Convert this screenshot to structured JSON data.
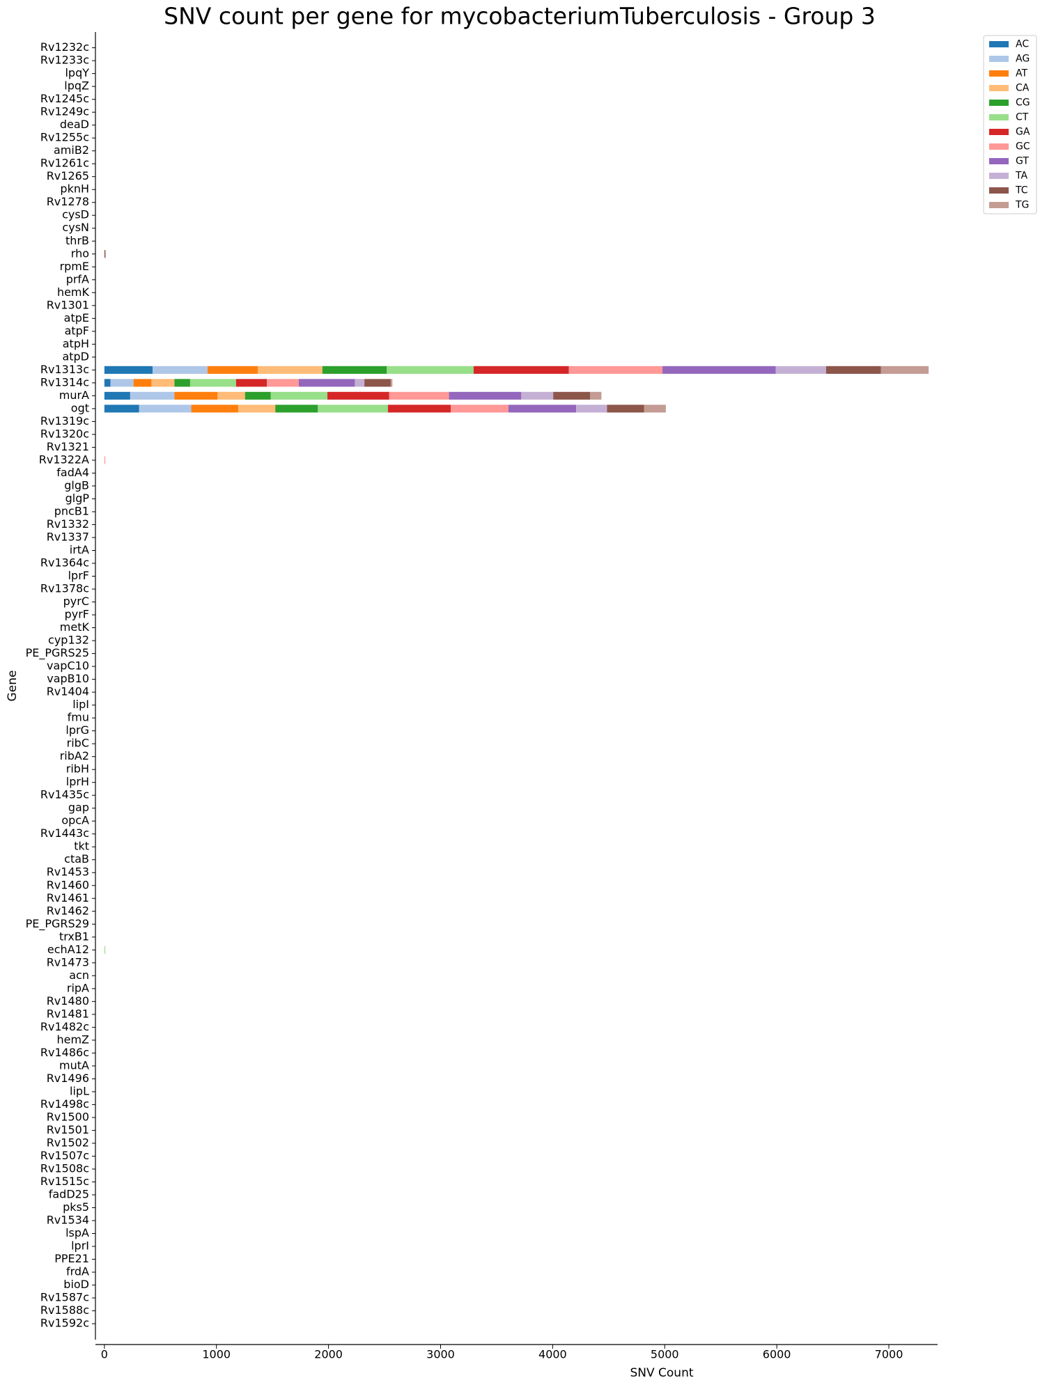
{
  "chart_data": {
    "type": "stacked_barh",
    "title": "SNV count per gene for mycobacteriumTuberculosis - Group 3",
    "xlabel": "SNV Count",
    "ylabel": "Gene",
    "categories": [
      "Rv1232c",
      "Rv1233c",
      "lpqY",
      "lpqZ",
      "Rv1245c",
      "Rv1249c",
      "deaD",
      "Rv1255c",
      "amiB2",
      "Rv1261c",
      "Rv1265",
      "pknH",
      "Rv1278",
      "cysD",
      "cysN",
      "thrB",
      "rho",
      "rpmE",
      "prfA",
      "hemK",
      "Rv1301",
      "atpE",
      "atpF",
      "atpH",
      "atpD",
      "Rv1313c",
      "Rv1314c",
      "murA",
      "ogt",
      "Rv1319c",
      "Rv1320c",
      "Rv1321",
      "Rv1322A",
      "fadA4",
      "glgB",
      "glgP",
      "pncB1",
      "Rv1332",
      "Rv1337",
      "irtA",
      "Rv1364c",
      "lprF",
      "Rv1378c",
      "pyrC",
      "pyrF",
      "metK",
      "cyp132",
      "PE_PGRS25",
      "vapC10",
      "vapB10",
      "Rv1404",
      "lipI",
      "fmu",
      "lprG",
      "ribC",
      "ribA2",
      "ribH",
      "lprH",
      "Rv1435c",
      "gap",
      "opcA",
      "Rv1443c",
      "tkt",
      "ctaB",
      "Rv1453",
      "Rv1460",
      "Rv1461",
      "Rv1462",
      "PE_PGRS29",
      "trxB1",
      "echA12",
      "Rv1473",
      "acn",
      "ripA",
      "Rv1480",
      "Rv1481",
      "Rv1482c",
      "hemZ",
      "Rv1486c",
      "mutA",
      "Rv1496",
      "lipL",
      "Rv1498c",
      "Rv1500",
      "Rv1501",
      "Rv1502",
      "Rv1507c",
      "Rv1508c",
      "Rv1515c",
      "fadD25",
      "pks5",
      "Rv1534",
      "lspA",
      "lprI",
      "PPE21",
      "frdA",
      "bioD",
      "Rv1587c",
      "Rv1588c",
      "Rv1592c"
    ],
    "series": [
      {
        "name": "AC",
        "color": "#1f77b4",
        "values": [
          0,
          0,
          0,
          0,
          0,
          0,
          0,
          0,
          0,
          0,
          0,
          0,
          0,
          0,
          0,
          0,
          0,
          0,
          0,
          0,
          0,
          0,
          0,
          0,
          0,
          430,
          55,
          230,
          310,
          0,
          0,
          0,
          0,
          0,
          0,
          0,
          0,
          0,
          0,
          0,
          0,
          0,
          0,
          0,
          0,
          0,
          0,
          0,
          0,
          0,
          0,
          0,
          0,
          0,
          0,
          0,
          0,
          0,
          0,
          0,
          0,
          0,
          0,
          0,
          0,
          0,
          0,
          0,
          0,
          0,
          0,
          0,
          0,
          0,
          0,
          0,
          0,
          0,
          0,
          0,
          0,
          0,
          0,
          0,
          0,
          0,
          0,
          0,
          0,
          0,
          0,
          0,
          0,
          0,
          0,
          0,
          0,
          0,
          0,
          0
        ]
      },
      {
        "name": "AG",
        "color": "#aec7e8",
        "values": [
          0,
          0,
          0,
          0,
          0,
          0,
          0,
          0,
          0,
          0,
          0,
          0,
          0,
          0,
          0,
          0,
          0,
          0,
          0,
          0,
          0,
          0,
          0,
          0,
          0,
          490,
          205,
          395,
          465,
          0,
          0,
          0,
          0,
          0,
          0,
          0,
          0,
          0,
          0,
          0,
          0,
          0,
          0,
          0,
          0,
          0,
          0,
          0,
          0,
          0,
          0,
          0,
          0,
          0,
          0,
          0,
          0,
          0,
          0,
          0,
          0,
          0,
          0,
          0,
          0,
          0,
          0,
          0,
          0,
          0,
          0,
          0,
          0,
          0,
          0,
          0,
          0,
          0,
          0,
          0,
          0,
          0,
          0,
          0,
          0,
          0,
          0,
          0,
          0,
          0,
          0,
          0,
          0,
          0,
          0,
          0,
          0,
          0,
          0,
          0
        ]
      },
      {
        "name": "AT",
        "color": "#ff7f0e",
        "values": [
          0,
          0,
          0,
          0,
          0,
          0,
          0,
          0,
          0,
          0,
          0,
          0,
          0,
          0,
          0,
          0,
          0,
          0,
          0,
          0,
          0,
          0,
          0,
          0,
          0,
          450,
          160,
          385,
          420,
          0,
          0,
          0,
          0,
          0,
          0,
          0,
          0,
          0,
          0,
          0,
          0,
          0,
          0,
          0,
          0,
          0,
          0,
          0,
          0,
          0,
          0,
          0,
          0,
          0,
          0,
          0,
          0,
          0,
          0,
          0,
          0,
          0,
          0,
          0,
          0,
          0,
          0,
          0,
          0,
          0,
          0,
          0,
          0,
          0,
          0,
          0,
          0,
          0,
          0,
          0,
          0,
          0,
          0,
          0,
          0,
          0,
          0,
          0,
          0,
          0,
          0,
          0,
          0,
          0,
          0,
          0,
          0,
          0,
          0,
          0
        ]
      },
      {
        "name": "CA",
        "color": "#ffbb78",
        "values": [
          0,
          0,
          0,
          0,
          0,
          0,
          0,
          0,
          0,
          0,
          0,
          0,
          0,
          0,
          0,
          0,
          0,
          0,
          0,
          0,
          0,
          0,
          0,
          0,
          0,
          575,
          205,
          245,
          330,
          0,
          0,
          0,
          0,
          0,
          0,
          0,
          0,
          0,
          0,
          0,
          0,
          0,
          0,
          0,
          0,
          0,
          0,
          0,
          0,
          0,
          0,
          0,
          0,
          0,
          0,
          0,
          0,
          0,
          0,
          0,
          0,
          0,
          0,
          0,
          0,
          0,
          0,
          0,
          0,
          0,
          0,
          0,
          0,
          0,
          0,
          0,
          0,
          0,
          0,
          0,
          0,
          0,
          0,
          0,
          0,
          0,
          0,
          0,
          0,
          0,
          0,
          0,
          0,
          0,
          0,
          0,
          0,
          0,
          0,
          0
        ]
      },
      {
        "name": "CG",
        "color": "#2ca02c",
        "values": [
          0,
          0,
          0,
          0,
          0,
          0,
          0,
          0,
          0,
          0,
          0,
          0,
          0,
          0,
          0,
          0,
          0,
          0,
          0,
          0,
          0,
          0,
          0,
          0,
          0,
          575,
          140,
          230,
          380,
          0,
          0,
          0,
          0,
          0,
          0,
          0,
          0,
          0,
          0,
          0,
          0,
          0,
          0,
          0,
          0,
          0,
          0,
          0,
          0,
          0,
          0,
          0,
          0,
          0,
          0,
          0,
          0,
          0,
          0,
          0,
          0,
          0,
          0,
          0,
          0,
          0,
          0,
          0,
          0,
          0,
          0,
          0,
          0,
          0,
          0,
          0,
          0,
          0,
          0,
          0,
          0,
          0,
          0,
          0,
          0,
          0,
          0,
          0,
          0,
          0,
          0,
          0,
          0,
          0,
          0,
          0,
          0,
          0,
          0,
          0
        ]
      },
      {
        "name": "CT",
        "color": "#98df8a",
        "values": [
          0,
          0,
          0,
          0,
          0,
          0,
          0,
          0,
          0,
          0,
          0,
          0,
          0,
          0,
          0,
          0,
          0,
          0,
          0,
          0,
          0,
          0,
          0,
          0,
          0,
          775,
          410,
          505,
          625,
          0,
          0,
          0,
          0,
          0,
          0,
          0,
          0,
          0,
          0,
          0,
          0,
          0,
          0,
          0,
          0,
          0,
          0,
          0,
          0,
          0,
          0,
          0,
          0,
          0,
          0,
          0,
          0,
          0,
          0,
          0,
          0,
          0,
          0,
          0,
          0,
          0,
          0,
          0,
          0,
          0,
          8,
          0,
          0,
          0,
          0,
          0,
          0,
          0,
          0,
          0,
          0,
          0,
          0,
          0,
          0,
          0,
          0,
          0,
          0,
          0,
          0,
          0,
          0,
          0,
          0,
          0,
          0,
          0,
          0,
          0
        ]
      },
      {
        "name": "GA",
        "color": "#d62728",
        "values": [
          0,
          0,
          0,
          0,
          0,
          0,
          0,
          0,
          0,
          0,
          0,
          0,
          0,
          0,
          0,
          0,
          0,
          0,
          0,
          0,
          0,
          0,
          0,
          0,
          0,
          850,
          275,
          550,
          560,
          0,
          0,
          0,
          0,
          0,
          0,
          0,
          0,
          0,
          0,
          0,
          0,
          0,
          0,
          0,
          0,
          0,
          0,
          0,
          0,
          0,
          0,
          0,
          0,
          0,
          0,
          0,
          0,
          0,
          0,
          0,
          0,
          0,
          0,
          0,
          0,
          0,
          0,
          0,
          0,
          0,
          0,
          0,
          0,
          0,
          0,
          0,
          0,
          0,
          0,
          0,
          0,
          0,
          0,
          0,
          0,
          0,
          0,
          0,
          0,
          0,
          0,
          0,
          0,
          0,
          0,
          0,
          0,
          0,
          0,
          0
        ]
      },
      {
        "name": "GC",
        "color": "#ff9896",
        "values": [
          0,
          0,
          0,
          0,
          0,
          0,
          0,
          0,
          0,
          0,
          0,
          0,
          0,
          0,
          0,
          0,
          0,
          0,
          0,
          0,
          0,
          0,
          0,
          0,
          0,
          835,
          285,
          535,
          515,
          0,
          0,
          0,
          8,
          0,
          0,
          0,
          0,
          0,
          0,
          0,
          0,
          0,
          0,
          0,
          0,
          0,
          0,
          0,
          0,
          0,
          0,
          0,
          0,
          0,
          0,
          0,
          0,
          0,
          0,
          0,
          0,
          0,
          0,
          0,
          0,
          0,
          0,
          0,
          0,
          0,
          0,
          0,
          0,
          0,
          0,
          0,
          0,
          0,
          0,
          0,
          0,
          0,
          0,
          0,
          0,
          0,
          0,
          0,
          0,
          0,
          0,
          0,
          0,
          0,
          0,
          0,
          0,
          0,
          0,
          0
        ]
      },
      {
        "name": "GT",
        "color": "#9467bd",
        "values": [
          0,
          0,
          0,
          0,
          0,
          0,
          0,
          0,
          0,
          0,
          0,
          0,
          0,
          0,
          0,
          0,
          0,
          0,
          0,
          0,
          0,
          0,
          0,
          0,
          0,
          1010,
          500,
          645,
          605,
          0,
          0,
          0,
          0,
          0,
          0,
          0,
          0,
          0,
          0,
          0,
          0,
          0,
          0,
          0,
          0,
          0,
          0,
          0,
          0,
          0,
          0,
          0,
          0,
          0,
          0,
          0,
          0,
          0,
          0,
          0,
          0,
          0,
          0,
          0,
          0,
          0,
          0,
          0,
          0,
          0,
          0,
          0,
          0,
          0,
          0,
          0,
          0,
          0,
          0,
          0,
          0,
          0,
          0,
          0,
          0,
          0,
          0,
          0,
          0,
          0,
          0,
          0,
          0,
          0,
          0,
          0,
          0,
          0,
          0,
          0
        ]
      },
      {
        "name": "TA",
        "color": "#c5b0d5",
        "values": [
          0,
          0,
          0,
          0,
          0,
          0,
          0,
          0,
          0,
          0,
          0,
          0,
          0,
          0,
          0,
          0,
          0,
          0,
          0,
          0,
          0,
          0,
          0,
          0,
          0,
          450,
          85,
          285,
          275,
          0,
          0,
          0,
          0,
          0,
          0,
          0,
          0,
          0,
          0,
          0,
          0,
          0,
          0,
          0,
          0,
          0,
          0,
          0,
          0,
          0,
          0,
          0,
          0,
          0,
          0,
          0,
          0,
          0,
          0,
          0,
          0,
          0,
          0,
          0,
          0,
          0,
          0,
          0,
          0,
          0,
          0,
          0,
          0,
          0,
          0,
          0,
          0,
          0,
          0,
          0,
          0,
          0,
          0,
          0,
          0,
          0,
          0,
          0,
          0,
          0,
          0,
          0,
          0,
          0,
          0,
          0,
          0,
          0,
          0,
          0
        ]
      },
      {
        "name": "TC",
        "color": "#8c564b",
        "values": [
          0,
          0,
          0,
          0,
          0,
          0,
          0,
          0,
          0,
          0,
          0,
          0,
          0,
          0,
          0,
          0,
          10,
          0,
          0,
          0,
          0,
          0,
          0,
          0,
          0,
          490,
          235,
          330,
          330,
          0,
          0,
          0,
          0,
          0,
          0,
          0,
          0,
          0,
          0,
          0,
          0,
          0,
          0,
          0,
          0,
          0,
          0,
          0,
          0,
          0,
          0,
          0,
          0,
          0,
          0,
          0,
          0,
          0,
          0,
          0,
          0,
          0,
          0,
          0,
          0,
          0,
          0,
          0,
          0,
          0,
          0,
          0,
          0,
          0,
          0,
          0,
          0,
          0,
          0,
          0,
          0,
          0,
          0,
          0,
          0,
          0,
          0,
          0,
          0,
          0,
          0,
          0,
          0,
          0,
          0,
          0,
          0,
          0,
          0,
          0
        ]
      },
      {
        "name": "TG",
        "color": "#c49c94",
        "values": [
          0,
          0,
          0,
          0,
          0,
          0,
          0,
          0,
          0,
          0,
          0,
          0,
          0,
          0,
          0,
          0,
          0,
          0,
          0,
          0,
          0,
          0,
          0,
          0,
          0,
          425,
          15,
          100,
          195,
          0,
          0,
          0,
          0,
          0,
          0,
          0,
          0,
          0,
          0,
          0,
          0,
          0,
          0,
          0,
          0,
          0,
          0,
          0,
          0,
          0,
          0,
          0,
          0,
          0,
          0,
          0,
          0,
          0,
          0,
          0,
          0,
          0,
          0,
          0,
          0,
          0,
          0,
          0,
          0,
          0,
          0,
          0,
          0,
          0,
          0,
          0,
          0,
          0,
          0,
          0,
          0,
          0,
          0,
          0,
          0,
          0,
          0,
          0,
          0,
          0,
          0,
          0,
          0,
          0,
          0,
          0,
          0,
          0,
          0,
          0
        ]
      }
    ],
    "xlim": [
      -80,
      7435
    ],
    "xticks": [
      0,
      1000,
      2000,
      3000,
      4000,
      5000,
      6000,
      7000
    ],
    "grid": false,
    "legend": "upper right"
  }
}
